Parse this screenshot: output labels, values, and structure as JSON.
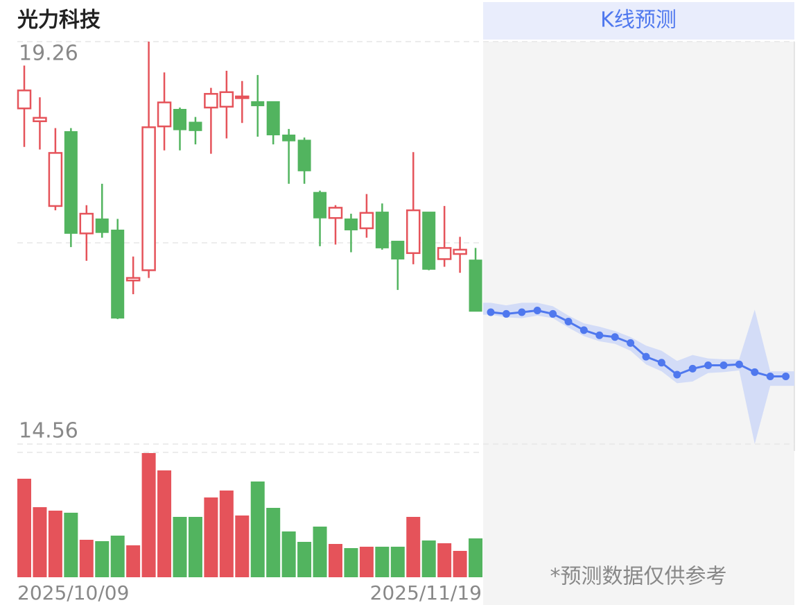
{
  "chart_data": {
    "type": "candlestick",
    "title": "光力科技",
    "tab": "K线预测",
    "note": "*预测数据仅供参考",
    "date_start": "2025/10/09",
    "date_end": "2025/11/19",
    "ylim": [
      14.56,
      19.26
    ],
    "yticks": [
      19.26,
      14.56
    ],
    "grid": true,
    "up_color": "#e5535a",
    "down_color": "#52b45f",
    "forecast_color": "#4f78ee",
    "band_color": "#d3dcf7",
    "open": [
      18.48,
      18.33,
      17.34,
      18.21,
      17.02,
      17.19,
      17.06,
      16.47,
      16.59,
      18.27,
      18.47,
      18.32,
      18.49,
      18.5,
      18.6,
      18.56,
      18.56,
      18.17,
      18.11,
      17.5,
      17.2,
      17.19,
      17.08,
      17.27,
      16.93,
      16.79,
      17.27,
      16.72,
      16.78,
      16.71
    ],
    "high": [
      18.98,
      18.61,
      18.25,
      18.25,
      17.35,
      17.6,
      17.19,
      16.75,
      19.26,
      18.9,
      18.49,
      18.38,
      18.72,
      18.92,
      18.8,
      18.87,
      18.56,
      18.24,
      18.14,
      17.52,
      17.35,
      17.25,
      17.48,
      17.37,
      16.93,
      17.97,
      17.27,
      17.34,
      16.98,
      16.85
    ],
    "low": [
      18.03,
      18.0,
      17.29,
      16.86,
      16.7,
      16.97,
      16.02,
      16.31,
      16.5,
      17.99,
      17.99,
      18.06,
      17.95,
      18.13,
      18.31,
      18.15,
      18.06,
      17.6,
      17.6,
      16.87,
      16.89,
      16.8,
      16.97,
      16.83,
      16.36,
      16.66,
      16.59,
      16.63,
      16.56,
      16.11
    ],
    "close": [
      18.69,
      18.37,
      17.96,
      17.02,
      17.25,
      17.03,
      16.03,
      16.5,
      18.26,
      18.55,
      18.23,
      18.22,
      18.65,
      18.67,
      18.62,
      18.51,
      18.17,
      18.1,
      17.75,
      17.2,
      17.32,
      17.06,
      17.26,
      16.85,
      16.72,
      17.29,
      16.6,
      16.85,
      16.83,
      16.11
    ],
    "volume": [
      142,
      101,
      96,
      93,
      54,
      52,
      60,
      46,
      179,
      154,
      87,
      87,
      115,
      125,
      89,
      138,
      100,
      66,
      51,
      73,
      48,
      42,
      44,
      44,
      44,
      87,
      53,
      49,
      38,
      56
    ],
    "forecast": [
      16.1,
      16.08,
      16.1,
      16.12,
      16.08,
      15.99,
      15.89,
      15.83,
      15.81,
      15.74,
      15.58,
      15.51,
      15.37,
      15.44,
      15.48,
      15.48,
      15.49,
      15.4,
      15.35,
      15.35
    ],
    "forecast_upper": [
      16.21,
      16.18,
      16.21,
      16.21,
      16.17,
      16.06,
      15.97,
      15.93,
      15.88,
      15.81,
      15.71,
      15.65,
      15.53,
      15.6,
      15.56,
      15.55,
      15.55,
      16.13,
      15.41,
      15.41
    ],
    "forecast_lower": [
      16.07,
      16.04,
      16.03,
      16.06,
      16.03,
      15.92,
      15.82,
      15.76,
      15.73,
      15.65,
      15.49,
      15.41,
      15.27,
      15.29,
      15.39,
      15.4,
      15.42,
      14.56,
      15.24,
      15.24
    ]
  }
}
